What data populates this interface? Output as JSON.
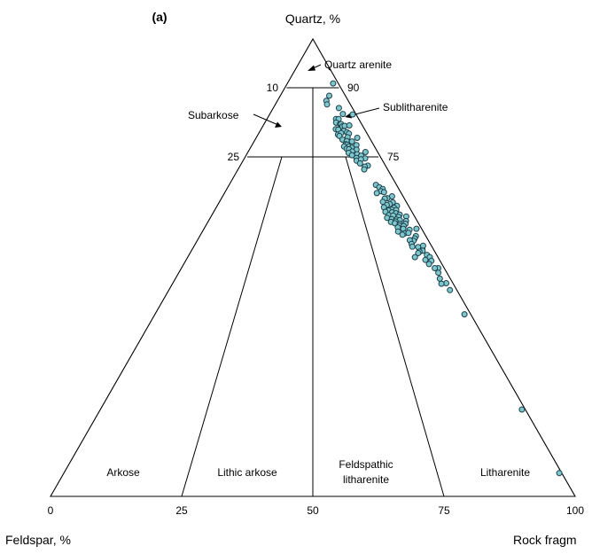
{
  "chart_data": {
    "type": "scatter",
    "subtype": "ternary",
    "panel_label": "(a)",
    "apex_labels": {
      "top": "Quartz, %",
      "left": "Feldspar, %",
      "right": "Rock fragm"
    },
    "quartz_ticks": [
      {
        "left": "10",
        "right": "90"
      },
      {
        "left": "25",
        "right": "75"
      }
    ],
    "base_ticks": [
      "0",
      "25",
      "50",
      "75",
      "100"
    ],
    "fields": {
      "quartz_arenite": "Quartz arenite",
      "subarkose": "Subarkose",
      "sublitharenite": "Sublitharenite",
      "arkose": "Arkose",
      "lithic_arkose": "Lithic arkose",
      "feldspathic_litharenite_1": "Feldspathic",
      "feldspathic_litharenite_2": "litharenite",
      "litharenite": "Litharenite"
    },
    "point_style": {
      "fill": "#7ec8cd",
      "stroke": "#1c3f4a"
    },
    "points_note": "each point: q = quartz %, r = rock-fragment share of (feldspar + rock fragments) %",
    "points": [
      {
        "q": 90.3,
        "r": 89.8
      },
      {
        "q": 87.6,
        "r": 75.2
      },
      {
        "q": 86.5,
        "r": 69.1
      },
      {
        "q": 85.7,
        "r": 68.9
      },
      {
        "q": 84.9,
        "r": 82.9
      },
      {
        "q": 83.6,
        "r": 84.9
      },
      {
        "q": 83.5,
        "r": 96.0
      },
      {
        "q": 82.5,
        "r": 75.2
      },
      {
        "q": 82.5,
        "r": 78.1
      },
      {
        "q": 81.7,
        "r": 74.2
      },
      {
        "q": 81.4,
        "r": 77.9
      },
      {
        "q": 81.4,
        "r": 78.9
      },
      {
        "q": 80.9,
        "r": 79.5
      },
      {
        "q": 81.0,
        "r": 81.9
      },
      {
        "q": 81.1,
        "r": 86.8
      },
      {
        "q": 80.3,
        "r": 72.2
      },
      {
        "q": 80.2,
        "r": 74.5
      },
      {
        "q": 79.9,
        "r": 79.3
      },
      {
        "q": 79.6,
        "r": 82.0
      },
      {
        "q": 79.1,
        "r": 72.9
      },
      {
        "q": 79.4,
        "r": 76.2
      },
      {
        "q": 79.3,
        "r": 83.2
      },
      {
        "q": 78.8,
        "r": 73.9
      },
      {
        "q": 78.5,
        "r": 80.8
      },
      {
        "q": 78.4,
        "r": 89.2
      },
      {
        "q": 78.0,
        "r": 75.7
      },
      {
        "q": 77.7,
        "r": 79.0
      },
      {
        "q": 77.6,
        "r": 83.3
      },
      {
        "q": 77.0,
        "r": 77.3
      },
      {
        "q": 76.9,
        "r": 78.4
      },
      {
        "q": 76.5,
        "r": 75.3
      },
      {
        "q": 76.5,
        "r": 79.0
      },
      {
        "q": 76.8,
        "r": 85.8
      },
      {
        "q": 76.2,
        "r": 81.2
      },
      {
        "q": 76.0,
        "r": 76.8
      },
      {
        "q": 75.9,
        "r": 78.6
      },
      {
        "q": 75.8,
        "r": 84.4
      },
      {
        "q": 75.4,
        "r": 80.5
      },
      {
        "q": 75.1,
        "r": 77.4
      },
      {
        "q": 75.3,
        "r": 90.6
      },
      {
        "q": 74.8,
        "r": 83.5
      },
      {
        "q": 74.6,
        "r": 79.4
      },
      {
        "q": 74.5,
        "r": 86.1
      },
      {
        "q": 74.0,
        "r": 82.0
      },
      {
        "q": 73.9,
        "r": 88.2
      },
      {
        "q": 73.4,
        "r": 81.4
      },
      {
        "q": 73.7,
        "r": 84.9
      },
      {
        "q": 72.8,
        "r": 83.1
      },
      {
        "q": 72.3,
        "r": 87.9
      },
      {
        "q": 72.1,
        "r": 85.5
      },
      {
        "q": 71.5,
        "r": 84.4
      },
      {
        "q": 68.1,
        "r": 87.7
      },
      {
        "q": 67.6,
        "r": 89.1
      },
      {
        "q": 67.2,
        "r": 90.6
      },
      {
        "q": 66.7,
        "r": 89.0
      },
      {
        "q": 66.5,
        "r": 90.5
      },
      {
        "q": 66.3,
        "r": 86.2
      },
      {
        "q": 65.6,
        "r": 93.9
      },
      {
        "q": 65.2,
        "r": 90.8
      },
      {
        "q": 65.1,
        "r": 89.3
      },
      {
        "q": 64.3,
        "r": 92.7
      },
      {
        "q": 64.4,
        "r": 87.5
      },
      {
        "q": 63.9,
        "r": 90.6
      },
      {
        "q": 63.7,
        "r": 88.8
      },
      {
        "q": 63.5,
        "r": 93.9
      },
      {
        "q": 63.1,
        "r": 91.9
      },
      {
        "q": 63.2,
        "r": 86.8
      },
      {
        "q": 62.7,
        "r": 90.2
      },
      {
        "q": 62.6,
        "r": 92.5
      },
      {
        "q": 62.5,
        "r": 88.5
      },
      {
        "q": 62.2,
        "r": 86.6
      },
      {
        "q": 62.1,
        "r": 89.8
      },
      {
        "q": 61.9,
        "r": 91.6
      },
      {
        "q": 61.5,
        "r": 87.6
      },
      {
        "q": 61.6,
        "r": 93.1
      },
      {
        "q": 61.4,
        "r": 89.7
      },
      {
        "q": 61.2,
        "r": 95.9
      },
      {
        "q": 61.1,
        "r": 92.0
      },
      {
        "q": 60.9,
        "r": 86.2
      },
      {
        "q": 60.6,
        "r": 88.2
      },
      {
        "q": 60.5,
        "r": 90.3
      },
      {
        "q": 60.4,
        "r": 91.9
      },
      {
        "q": 60.2,
        "r": 94.6
      },
      {
        "q": 60.1,
        "r": 89.5
      },
      {
        "q": 60.0,
        "r": 87.2
      },
      {
        "q": 59.7,
        "r": 88.8
      },
      {
        "q": 59.6,
        "r": 91.0
      },
      {
        "q": 59.6,
        "r": 93.7
      },
      {
        "q": 59.2,
        "r": 90.4
      },
      {
        "q": 59.1,
        "r": 92.3
      },
      {
        "q": 58.8,
        "r": 89.3
      },
      {
        "q": 58.5,
        "r": 91.5
      },
      {
        "q": 58.5,
        "r": 97.6
      },
      {
        "q": 58.3,
        "r": 94.2
      },
      {
        "q": 57.9,
        "r": 88.6
      },
      {
        "q": 57.5,
        "r": 91.2
      },
      {
        "q": 57.6,
        "r": 93.0
      },
      {
        "q": 57.2,
        "r": 89.9
      },
      {
        "q": 56.9,
        "r": 95.6
      },
      {
        "q": 56.4,
        "r": 94.5
      },
      {
        "q": 55.9,
        "r": 93.5
      },
      {
        "q": 56.0,
        "r": 92.0
      },
      {
        "q": 55.2,
        "r": 92.0
      },
      {
        "q": 54.6,
        "r": 91.8
      },
      {
        "q": 54.3,
        "r": 95.7
      },
      {
        "q": 54.8,
        "r": 96.5
      },
      {
        "q": 54.5,
        "r": 94.1
      },
      {
        "q": 53.7,
        "r": 95.2
      },
      {
        "q": 53.5,
        "r": 93.7
      },
      {
        "q": 53.2,
        "r": 92.9
      },
      {
        "q": 52.8,
        "r": 96.1
      },
      {
        "q": 52.3,
        "r": 96.7
      },
      {
        "q": 52.3,
        "r": 90.8
      },
      {
        "q": 51.7,
        "r": 94.4
      },
      {
        "q": 51.5,
        "r": 96.6
      },
      {
        "q": 50.8,
        "r": 95.0
      },
      {
        "q": 49.9,
        "r": 97.7
      },
      {
        "q": 49.9,
        "r": 96.4
      },
      {
        "q": 48.9,
        "r": 96.8
      },
      {
        "q": 47.6,
        "r": 96.2
      },
      {
        "q": 46.6,
        "r": 97.6
      },
      {
        "q": 46.5,
        "r": 95.8
      },
      {
        "q": 45.1,
        "r": 97.6
      },
      {
        "q": 39.8,
        "r": 98.0
      },
      {
        "q": 19.0,
        "r": 99.2
      },
      {
        "q": 5.1,
        "r": 99.5
      }
    ]
  }
}
